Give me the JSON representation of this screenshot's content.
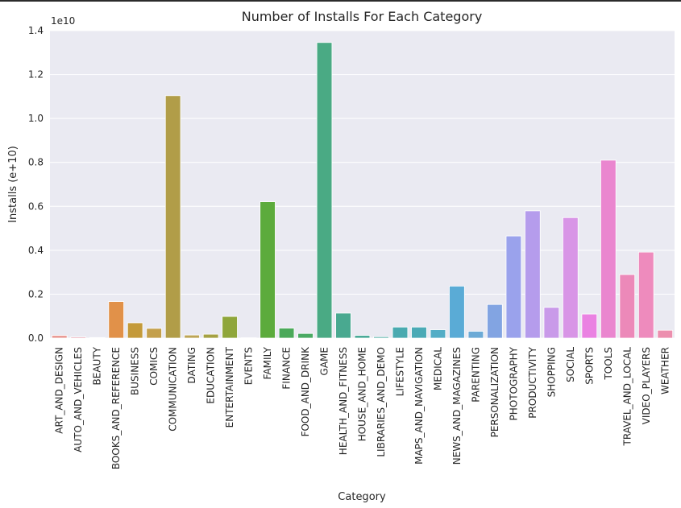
{
  "chart_data": {
    "type": "bar",
    "title": "Number of Installs For Each Category",
    "xlabel": "Category",
    "ylabel": "Installs (e+10)",
    "y_offset_label": "1e10",
    "ylim": [
      0,
      1.4
    ],
    "yticks": [
      0.0,
      0.2,
      0.4,
      0.6,
      0.8,
      1.0,
      1.2,
      1.4
    ],
    "ytick_labels": [
      "0.0",
      "0.2",
      "0.4",
      "0.6",
      "0.8",
      "1.0",
      "1.2",
      "1.4"
    ],
    "grid": true,
    "categories": [
      "ART_AND_DESIGN",
      "AUTO_AND_VEHICLES",
      "BEAUTY",
      "BOOKS_AND_REFERENCE",
      "BUSINESS",
      "COMICS",
      "COMMUNICATION",
      "DATING",
      "EDUCATION",
      "ENTERTAINMENT",
      "EVENTS",
      "FAMILY",
      "FINANCE",
      "FOOD_AND_DRINK",
      "GAME",
      "HEALTH_AND_FITNESS",
      "HOUSE_AND_HOME",
      "LIBRARIES_AND_DEMO",
      "LIFESTYLE",
      "MAPS_AND_NAVIGATION",
      "MEDICAL",
      "NEWS_AND_MAGAZINES",
      "PARENTING",
      "PERSONALIZATION",
      "PHOTOGRAPHY",
      "PRODUCTIVITY",
      "SHOPPING",
      "SOCIAL",
      "SPORTS",
      "TOOLS",
      "TRAVEL_AND_LOCAL",
      "VIDEO_PLAYERS",
      "WEATHER"
    ],
    "values": [
      0.0124,
      0.0053,
      0.0027,
      0.1666,
      0.0697,
      0.0444,
      1.1039,
      0.0141,
      0.0179,
      0.0987,
      0.0016,
      0.6209,
      0.0456,
      0.0212,
      1.3458,
      0.1138,
      0.0125,
      0.0063,
      0.0504,
      0.0504,
      0.0383,
      0.2369,
      0.0313,
      0.1532,
      0.465,
      0.5794,
      0.1401,
      0.5488,
      0.1097,
      0.8102,
      0.2895,
      0.3917,
      0.036
    ],
    "colors": [
      "#ea9a94",
      "#e79aa6",
      "#e0a088",
      "#e19149",
      "#c49a3a",
      "#c4a04c",
      "#b19d48",
      "#bda556",
      "#a5a143",
      "#8fa63b",
      "#86a446",
      "#5cab3c",
      "#4ba95a",
      "#4aaa63",
      "#4aaa84",
      "#49a990",
      "#4aaa98",
      "#4aa9a1",
      "#4aaab0",
      "#4baab6",
      "#53adc6",
      "#5aabd6",
      "#6caad6",
      "#82a4e2",
      "#9aa2ec",
      "#b59cec",
      "#c99ae9",
      "#d895e6",
      "#ea82e2",
      "#ea86cf",
      "#ec89b9",
      "#ee8bbd",
      "#ec8fae"
    ]
  }
}
